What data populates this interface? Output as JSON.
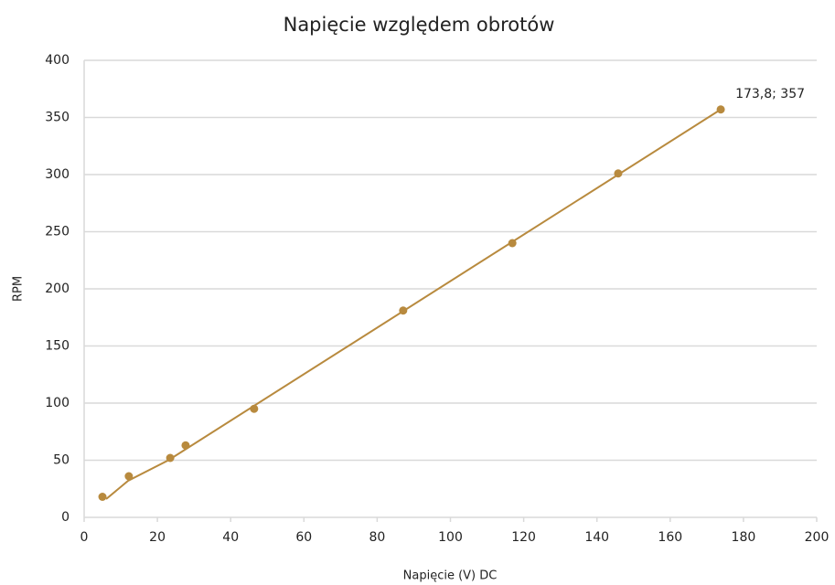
{
  "chart_data": {
    "type": "scatter",
    "title": "Napięcie względem obrotów",
    "xlabel": "Napięcie (V) DC",
    "ylabel": "RPM",
    "series": [
      {
        "type": "scatter",
        "color": "#b88a3e",
        "x": [
          5,
          12.2,
          23.5,
          27.7,
          46.4,
          87.1,
          116.9,
          145.8,
          173.8
        ],
        "values": [
          18,
          36,
          52,
          63,
          95,
          181,
          240,
          301,
          357
        ],
        "value_labels": [
          null,
          null,
          null,
          null,
          null,
          null,
          null,
          null,
          "173,8; 357"
        ]
      },
      {
        "type": "line",
        "color": "#b88a3e",
        "x": [
          6,
          12,
          23,
          173.8
        ],
        "values": [
          16,
          32,
          50,
          357
        ]
      }
    ],
    "xlim": [
      0,
      200
    ],
    "xticks": [
      0,
      20,
      40,
      60,
      80,
      100,
      120,
      140,
      160,
      180,
      200
    ],
    "ylim": [
      0,
      400
    ],
    "yticks": [
      0,
      50,
      100,
      150,
      200,
      250,
      300,
      350,
      400
    ],
    "grid": true
  }
}
